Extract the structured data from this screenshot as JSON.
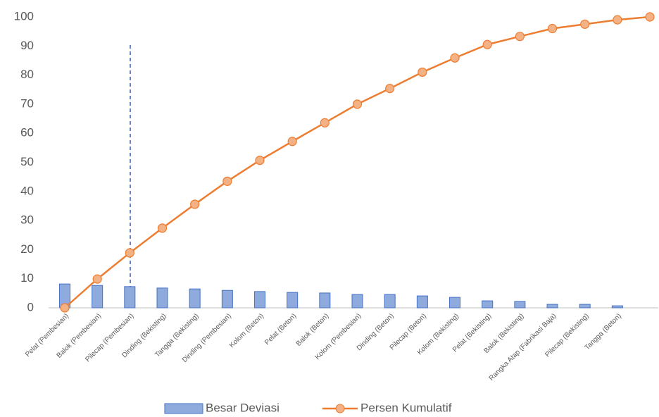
{
  "chart_data": {
    "type": "pareto",
    "categories": [
      "Pelat (Pembesian)",
      "Balok (Pembesian)",
      "Pilecap (Pembesian)",
      "Dinding (Bekisting)",
      "Tangga (Bekisting)",
      "Dinding (Pembesian)",
      "Kolom (Beton)",
      "Pelat (Beton)",
      "Balok (Beton)",
      "Kolom (Pembesian)",
      "Dinding (Beton)",
      "Pilecap (Beton)",
      "Kolom (Bekisting)",
      "Pelat (Bekisting)",
      "Balok (Bekisting)",
      "Rangka Atap (Fabrikasi Baja)",
      "Pilecap (Bekisting)",
      "Tangga (Beton)",
      null
    ],
    "series": [
      {
        "name": "Besar Deviasi",
        "type": "bar",
        "color": "#8faadc",
        "values": [
          8.2,
          7.7,
          7.3,
          6.8,
          6.5,
          6.0,
          5.6,
          5.3,
          5.1,
          4.6,
          4.6,
          4.1,
          3.6,
          2.4,
          2.2,
          1.2,
          1.2,
          0.7,
          null
        ]
      },
      {
        "name": "Persen Kumulatif",
        "type": "line",
        "color": "#ed7d31",
        "values": [
          0,
          9.9,
          18.9,
          27.4,
          35.6,
          43.5,
          50.7,
          57.2,
          63.6,
          70.0,
          75.4,
          81.0,
          85.9,
          90.5,
          93.3,
          96.0,
          97.5,
          99.0,
          100
        ]
      }
    ],
    "ylim": [
      0,
      100
    ],
    "yticks": [
      0,
      10,
      20,
      30,
      40,
      50,
      60,
      70,
      80,
      90,
      100
    ],
    "grid": false
  }
}
